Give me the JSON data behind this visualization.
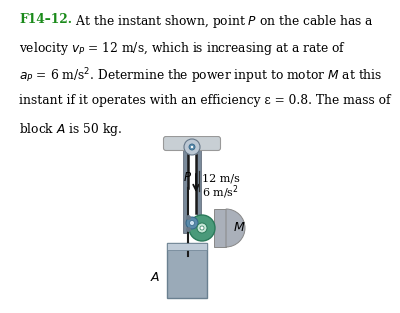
{
  "bg_color": "#ffffff",
  "cable_color": "#1a1a1a",
  "rail_color": "#6a7a8a",
  "block_color": "#9aaab8",
  "block_top_color": "#c0ccd8",
  "pulley_top_color": "#b8c4cc",
  "pulley_axle_color": "#4a8aaa",
  "motor_color": "#4a9a7a",
  "motor_ring_color": "#c8e8d8",
  "motor_bracket_color": "#aab0ba",
  "ceiling_color": "#c8cfd4",
  "velocity_label": "12 m/s",
  "accel_label": "6 m/s$^2$",
  "P_label": "P",
  "M_label": "M",
  "A_label": "A",
  "title_bold": "F14–12.",
  "text_line1": "  At the instant shown, point $P$ on the cable has a",
  "text_line2": "velocity $v_P$ = 12 m/s, which is increasing at a rate of",
  "text_line3": "$a_P$ = 6 m/s$^2$. Determine the power input to motor $M$ at this",
  "text_line4": "instant if it operates with an efficiency ε = 0.8. The mass of",
  "text_line5": "block $A$ is 50 kg."
}
